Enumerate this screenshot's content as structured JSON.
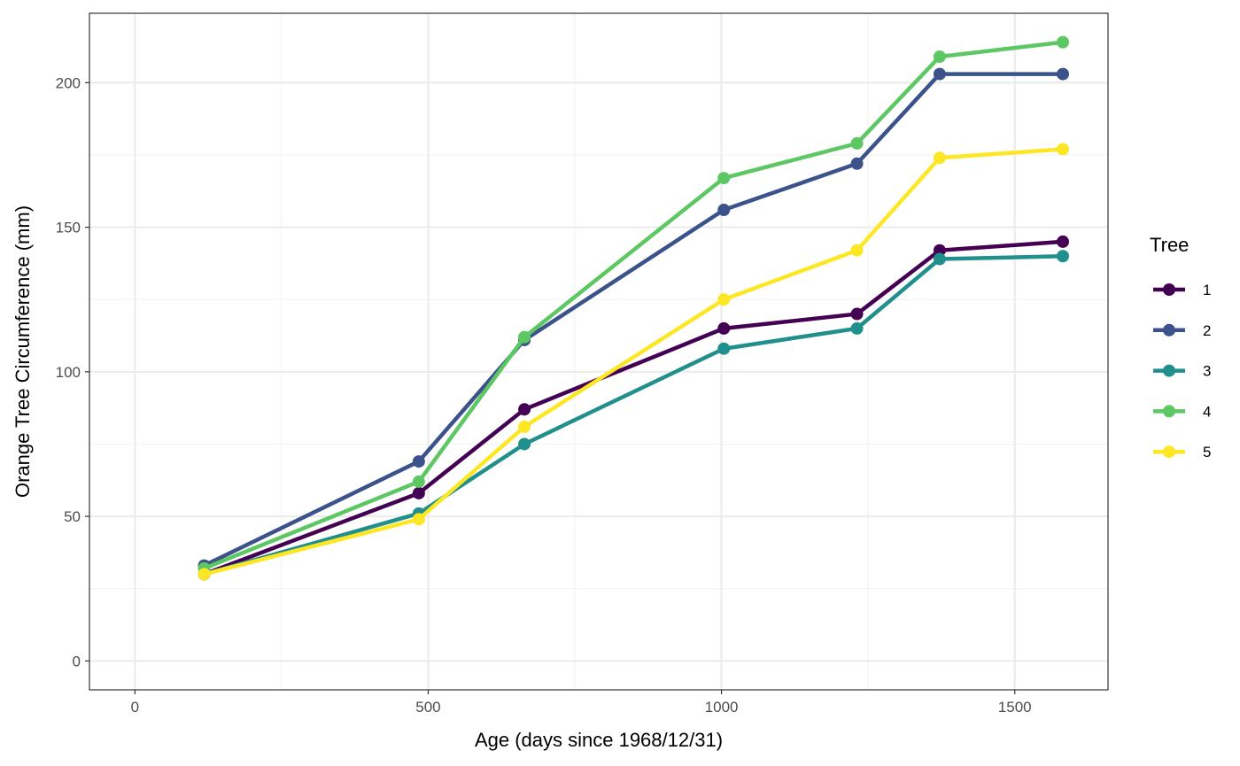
{
  "chart_data": {
    "type": "line",
    "title": "",
    "xlabel": "Age (days since 1968/12/31)",
    "ylabel": "Orange Tree Circumference (mm)",
    "xlim": [
      -160,
      3250
    ],
    "ylim": [
      -10,
      224
    ],
    "x_ticks": [
      0,
      500,
      1000,
      1500
    ],
    "y_ticks": [
      0,
      50,
      100,
      150,
      200
    ],
    "grid": true,
    "legend": {
      "title": "Tree",
      "placement": "right"
    },
    "x": [
      118,
      484,
      664,
      1004,
      1231,
      1372,
      1582
    ],
    "series": [
      {
        "name": "1",
        "color": "#440154",
        "values": [
          30,
          58,
          87,
          115,
          120,
          142,
          145
        ]
      },
      {
        "name": "2",
        "color": "#3B528B",
        "values": [
          33,
          69,
          111,
          156,
          172,
          203,
          203
        ]
      },
      {
        "name": "3",
        "color": "#21908C",
        "values": [
          30,
          51,
          75,
          108,
          115,
          139,
          140
        ]
      },
      {
        "name": "4",
        "color": "#5DC863",
        "values": [
          32,
          62,
          112,
          167,
          179,
          209,
          214
        ]
      },
      {
        "name": "5",
        "color": "#FDE725",
        "values": [
          30,
          49,
          81,
          125,
          142,
          174,
          177
        ]
      }
    ]
  }
}
